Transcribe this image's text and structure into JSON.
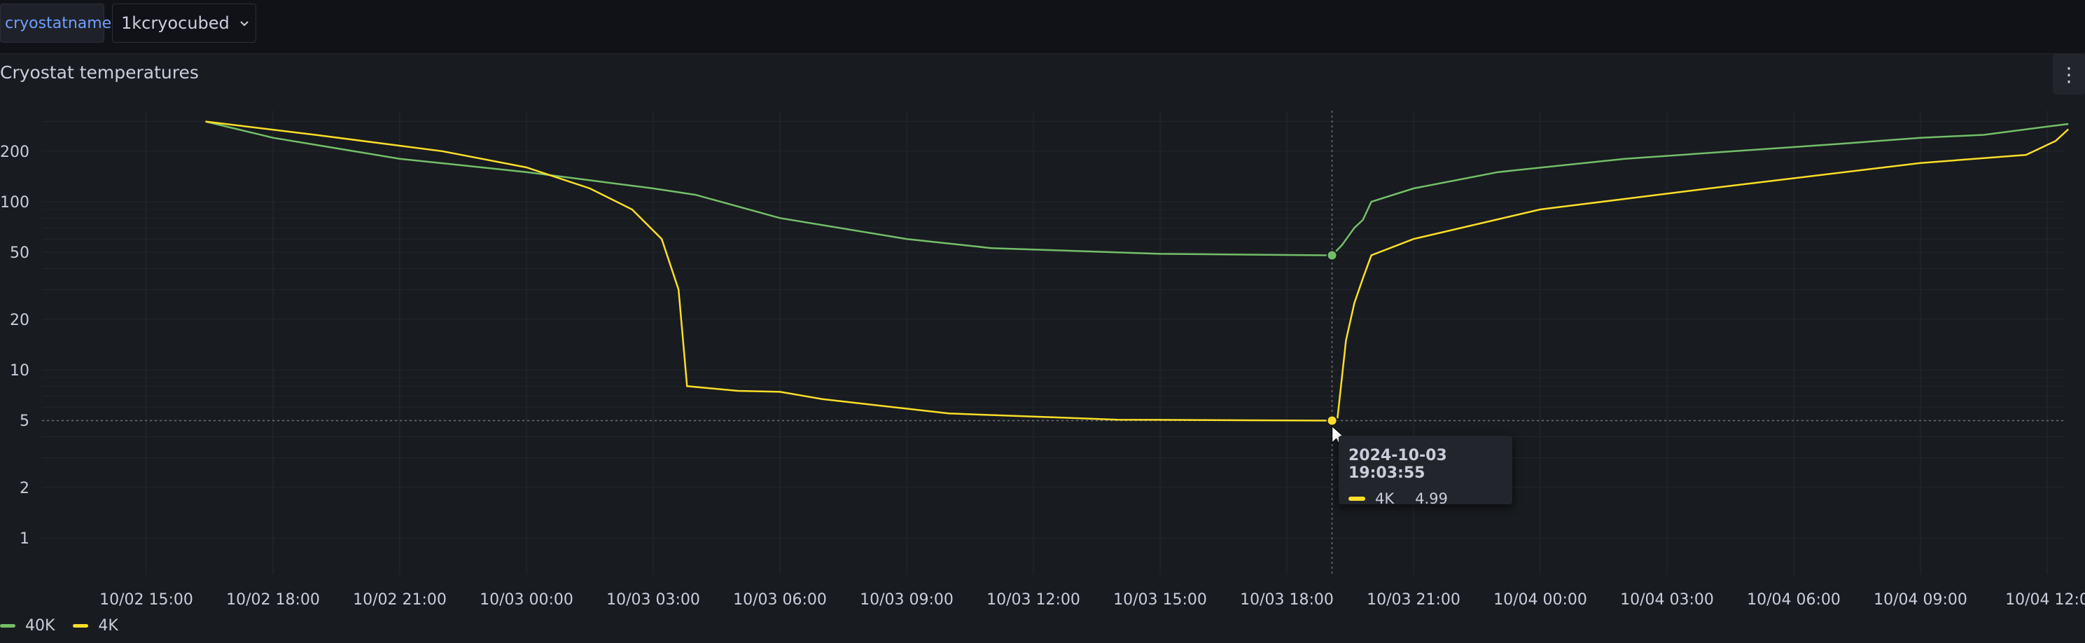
{
  "variable": {
    "label": "cryostatname",
    "value": "1kcryocubed"
  },
  "panel": {
    "title": "Cryostat temperatures"
  },
  "icons": {
    "menu": "kebab-menu-icon",
    "dropdown": "chevron-down-icon",
    "cursor": "pointer-icon"
  },
  "colors": {
    "40K": "#73bf69",
    "4K": "#fade2a",
    "background": "#181b1f"
  },
  "tooltip": {
    "time": "2024-10-03 19:03:55",
    "series": "4K",
    "value": "4.99"
  },
  "chart_data": {
    "type": "line",
    "title": "Cryostat temperatures",
    "y_scale": "log",
    "y_ticks": [
      "200",
      "100",
      "50",
      "20",
      "10",
      "5",
      "2",
      "1"
    ],
    "x_ticks": [
      "10/02 15:00",
      "10/02 18:00",
      "10/02 21:00",
      "10/03 00:00",
      "10/03 03:00",
      "10/03 06:00",
      "10/03 09:00",
      "10/03 12:00",
      "10/03 15:00",
      "10/03 18:00",
      "10/03 21:00",
      "10/04 00:00",
      "10/04 03:00",
      "10/04 06:00",
      "10/04 09:00",
      "10/04 12:0"
    ],
    "x_unit": "hours from 10/02 15:00",
    "grid": true,
    "legend_position": "bottom-left",
    "crosshair": {
      "x_hours": 28.07
    },
    "series": [
      {
        "name": "40K",
        "color": "#73bf69",
        "points": [
          [
            1.4,
            300
          ],
          [
            3,
            240
          ],
          [
            6,
            180
          ],
          [
            9,
            150
          ],
          [
            12,
            120
          ],
          [
            13,
            110
          ],
          [
            15,
            80
          ],
          [
            18,
            60
          ],
          [
            20,
            53
          ],
          [
            24,
            49
          ],
          [
            28,
            48
          ],
          [
            28.07,
            48
          ],
          [
            28.3,
            55
          ],
          [
            28.6,
            70
          ],
          [
            28.8,
            78
          ],
          [
            29,
            100
          ],
          [
            30,
            120
          ],
          [
            32,
            150
          ],
          [
            35,
            180
          ],
          [
            40,
            220
          ],
          [
            42,
            240
          ],
          [
            43.5,
            250
          ],
          [
            45,
            280
          ],
          [
            45.5,
            290
          ]
        ]
      },
      {
        "name": "4K",
        "color": "#fade2a",
        "points": [
          [
            1.4,
            300
          ],
          [
            4,
            250
          ],
          [
            7,
            200
          ],
          [
            9,
            160
          ],
          [
            10.5,
            120
          ],
          [
            11.5,
            90
          ],
          [
            12.2,
            60
          ],
          [
            12.6,
            30
          ],
          [
            12.8,
            8
          ],
          [
            14,
            7.5
          ],
          [
            15,
            7.4
          ],
          [
            16,
            6.7
          ],
          [
            19,
            5.5
          ],
          [
            23,
            5.05
          ],
          [
            28.07,
            4.99
          ],
          [
            28.2,
            5.2
          ],
          [
            28.4,
            15
          ],
          [
            28.6,
            25
          ],
          [
            28.8,
            35
          ],
          [
            29,
            48
          ],
          [
            30,
            60
          ],
          [
            33,
            90
          ],
          [
            37,
            120
          ],
          [
            42,
            170
          ],
          [
            44.5,
            190
          ],
          [
            45.2,
            230
          ],
          [
            45.5,
            270
          ]
        ]
      }
    ]
  }
}
